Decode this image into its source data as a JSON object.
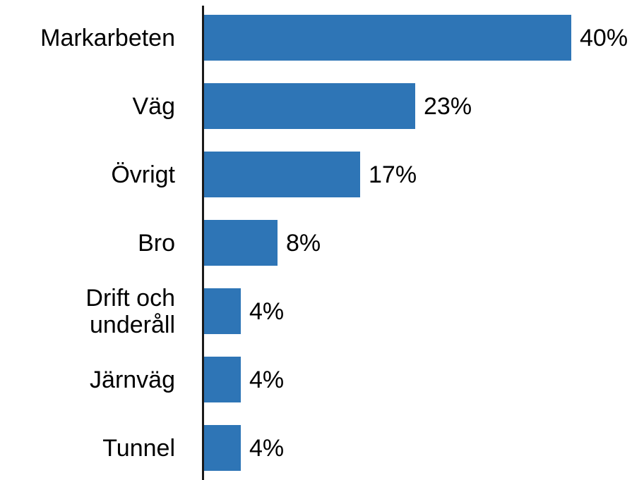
{
  "chart_data": {
    "type": "bar",
    "orientation": "horizontal",
    "categories": [
      "Markarbeten",
      "Väg",
      "Övrigt",
      "Bro",
      "Drift och underåll",
      "Järnväg",
      "Tunnel"
    ],
    "values": [
      40,
      23,
      17,
      8,
      4,
      4,
      4
    ],
    "value_labels": [
      "40%",
      "23%",
      "17%",
      "8%",
      "4%",
      "4%",
      "4%"
    ],
    "color": "#2e75b6"
  }
}
